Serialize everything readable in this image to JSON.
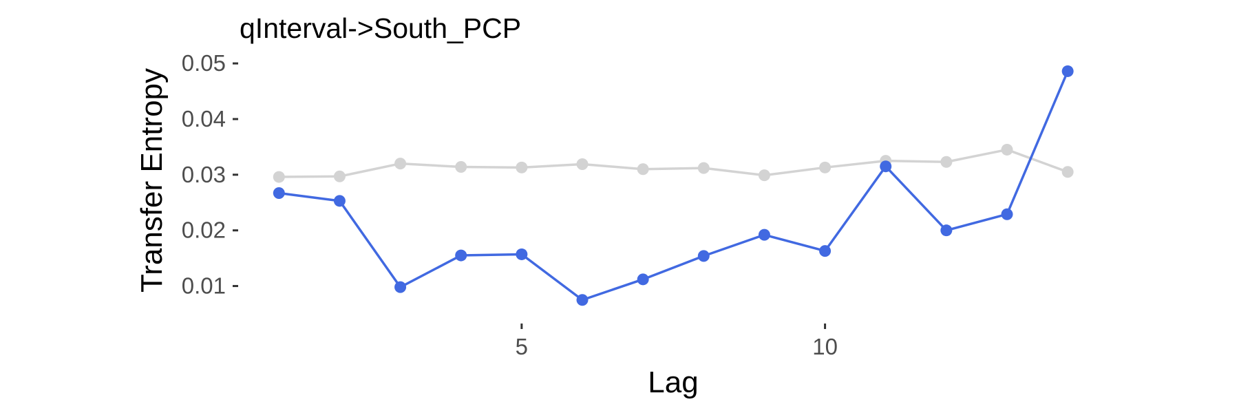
{
  "chart_data": {
    "type": "line",
    "title": "qInterval->South_PCP",
    "xlabel": "Lag",
    "ylabel": "Transfer Entropy",
    "xlim": [
      0.35,
      14.35
    ],
    "ylim": [
      0.0045,
      0.0515
    ],
    "x_ticks": [
      5,
      10
    ],
    "y_ticks": [
      0.01,
      0.02,
      0.03,
      0.04,
      0.05
    ],
    "x_tick_labels": [
      "5",
      "10"
    ],
    "y_tick_labels": [
      "0.01",
      "0.02",
      "0.03",
      "0.04",
      "0.05"
    ],
    "grid": false,
    "x": [
      1,
      2,
      3,
      4,
      5,
      6,
      7,
      8,
      9,
      10,
      11,
      12,
      13,
      14
    ],
    "series": [
      {
        "color": "#d3d3d3",
        "values": [
          0.0296,
          0.0297,
          0.032,
          0.0314,
          0.0313,
          0.0319,
          0.031,
          0.0312,
          0.0299,
          0.0313,
          0.0325,
          0.0323,
          0.0345,
          0.0305
        ]
      },
      {
        "color": "#4169e1",
        "values": [
          0.0267,
          0.0253,
          0.0098,
          0.0155,
          0.0157,
          0.0075,
          0.0112,
          0.0154,
          0.0192,
          0.0163,
          0.0315,
          0.02,
          0.0229,
          0.0486
        ]
      }
    ]
  }
}
